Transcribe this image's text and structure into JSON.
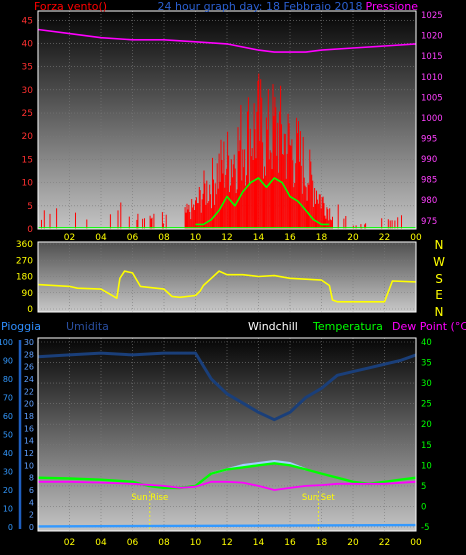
{
  "header": {
    "wind_title": "Forza vento()",
    "date_title": "24 hour graph day: 18 Febbraio 2018",
    "pressure_title": "Pressione"
  },
  "bottom_header": {
    "rain": "Pioggia",
    "humidity": "Umidita",
    "windchill": "Windchill",
    "temperature": "Temperatura",
    "dewpoint": "Dew Point (°C)"
  },
  "compass": [
    "N",
    "W",
    "S",
    "E",
    "N"
  ],
  "colors": {
    "wind": "#ff0000",
    "gust": "#00ff00",
    "pressure": "#ff00ff",
    "direction": "#ffff00",
    "humidity": "#1a3f7a",
    "temperature": "#00ff00",
    "dewpoint": "#ff00ff",
    "windchill": "#a0d0ff",
    "rain": "#3399ff",
    "sun": "#ffff00"
  },
  "chart_data": [
    {
      "type": "line",
      "name": "wind-and-pressure",
      "x_ticks": [
        "02",
        "04",
        "06",
        "08",
        "10",
        "12",
        "14",
        "16",
        "18",
        "20",
        "22",
        "00"
      ],
      "y_left": {
        "label": "Forza vento()",
        "ticks": [
          0,
          5,
          10,
          15,
          20,
          25,
          30,
          35,
          40,
          45
        ],
        "range": [
          0,
          47
        ]
      },
      "y_right": {
        "label": "Pressione",
        "ticks": [
          975,
          980,
          985,
          990,
          995,
          1000,
          1005,
          1010,
          1015,
          1020,
          1025
        ],
        "range": [
          973,
          1026
        ]
      },
      "wind_speed": {
        "hours": [
          0,
          1,
          2,
          3,
          4,
          5,
          6,
          7,
          8,
          9,
          10,
          10.5,
          11,
          11.5,
          12,
          12.5,
          13,
          13.5,
          14,
          14.5,
          15,
          15.5,
          16,
          16.5,
          17,
          17.5,
          18,
          18.5,
          19,
          19.5,
          20,
          21,
          22,
          23,
          24
        ],
        "values": [
          1,
          2,
          0,
          2,
          1,
          3,
          2,
          1,
          1,
          3,
          6,
          10,
          12,
          16,
          18,
          20,
          24,
          26,
          28,
          24,
          27,
          25,
          22,
          20,
          16,
          12,
          8,
          5,
          3,
          1,
          0,
          0,
          1,
          0,
          1
        ]
      },
      "wind_gust": {
        "hours": [
          10,
          10.5,
          11,
          11.5,
          12,
          12.5,
          13,
          13.5,
          14,
          14.5,
          15,
          15.5,
          16,
          16.5,
          17,
          17.5,
          18,
          18.5
        ],
        "values": [
          0,
          0,
          1,
          3,
          6,
          4,
          7,
          9,
          10,
          8,
          10,
          9,
          6,
          5,
          3,
          1,
          0,
          0
        ]
      },
      "pressure": {
        "hours": [
          0,
          2,
          4,
          6,
          8,
          10,
          12,
          14,
          15,
          16,
          17,
          18,
          20,
          22,
          24
        ],
        "values": [
          1021.5,
          1020.5,
          1019.5,
          1019,
          1019,
          1018.5,
          1018,
          1016.5,
          1016,
          1016,
          1016,
          1016.5,
          1017,
          1017.5,
          1018
        ]
      }
    },
    {
      "type": "line",
      "name": "wind-direction",
      "y_ticks": [
        0,
        90,
        180,
        270,
        360
      ],
      "range": [
        0,
        360
      ],
      "hours": [
        0,
        2,
        2.5,
        4,
        5,
        5.2,
        5.5,
        6,
        6.5,
        8,
        8.5,
        9,
        10,
        10.3,
        10.5,
        11,
        11.5,
        12,
        13,
        14,
        15,
        16,
        17,
        18,
        18.5,
        18.7,
        19,
        20,
        21,
        22,
        22.5,
        24
      ],
      "values": [
        135,
        125,
        115,
        110,
        60,
        170,
        210,
        200,
        125,
        110,
        70,
        65,
        75,
        100,
        130,
        170,
        210,
        190,
        190,
        180,
        185,
        170,
        165,
        160,
        130,
        50,
        40,
        40,
        40,
        40,
        155,
        150
      ]
    },
    {
      "type": "line",
      "name": "temperature-humidity",
      "x_ticks": [
        "02",
        "04",
        "06",
        "08",
        "10",
        "12",
        "14",
        "16",
        "18",
        "20",
        "22",
        "00"
      ],
      "y_left_outer": {
        "label": "Pioggia",
        "ticks": [
          0,
          10,
          20,
          30,
          40,
          50,
          60,
          70,
          80,
          90,
          100
        ],
        "range": [
          0,
          100
        ]
      },
      "y_left_inner": {
        "label": "Umidita",
        "ticks": [
          0,
          2,
          4,
          6,
          8,
          10,
          12,
          14,
          16,
          18,
          20,
          22,
          24,
          26,
          28,
          30
        ],
        "range": [
          0,
          30
        ]
      },
      "y_right": {
        "label": "Dew Point (°C)",
        "ticks": [
          -5,
          0,
          5,
          10,
          15,
          20,
          25,
          30,
          35,
          40
        ],
        "range": [
          -5,
          40
        ]
      },
      "humidity": {
        "hours": [
          0,
          2,
          4,
          6,
          8,
          9,
          10,
          11,
          12,
          13,
          14,
          15,
          16,
          17,
          18,
          19,
          20,
          21,
          22,
          23,
          24
        ],
        "values": [
          92,
          93,
          94,
          93,
          94,
          94,
          94,
          80,
          72,
          67,
          62,
          58,
          62,
          70,
          75,
          82,
          84,
          86,
          88,
          90,
          93
        ]
      },
      "temperature": {
        "hours": [
          0,
          2,
          4,
          6,
          7,
          8,
          9,
          10,
          10.5,
          11,
          12,
          13,
          14,
          15,
          16,
          17,
          18,
          19,
          20,
          21,
          22,
          23,
          24
        ],
        "values": [
          7,
          6.8,
          6.5,
          6,
          5,
          4.5,
          4.5,
          5,
          6.5,
          8,
          9,
          9.5,
          10,
          10.5,
          10,
          9,
          8,
          7,
          6,
          5.5,
          6,
          6.5,
          7
        ]
      },
      "windchill": {
        "hours": [
          11,
          12,
          13,
          14,
          15,
          16,
          17
        ],
        "values": [
          8,
          9,
          10,
          10.5,
          11,
          10.5,
          9
        ]
      },
      "dewpoint": {
        "hours": [
          0,
          2,
          4,
          6,
          8,
          9,
          10,
          11,
          12,
          13,
          14,
          15,
          16,
          17,
          18,
          19,
          20,
          22,
          24
        ],
        "values": [
          6,
          6,
          5.8,
          5.5,
          5,
          4.5,
          4.8,
          6,
          6,
          5.8,
          5,
          4,
          4.5,
          5,
          5.2,
          5.5,
          5.5,
          5.5,
          6
        ]
      },
      "rain": {
        "hours": [
          0,
          24
        ],
        "values": [
          0.3,
          1
        ]
      },
      "sun": {
        "rise_label": "Sun Rise",
        "set_label": "Sun Set",
        "rise_hour": 7.1,
        "set_hour": 17.8
      }
    }
  ]
}
